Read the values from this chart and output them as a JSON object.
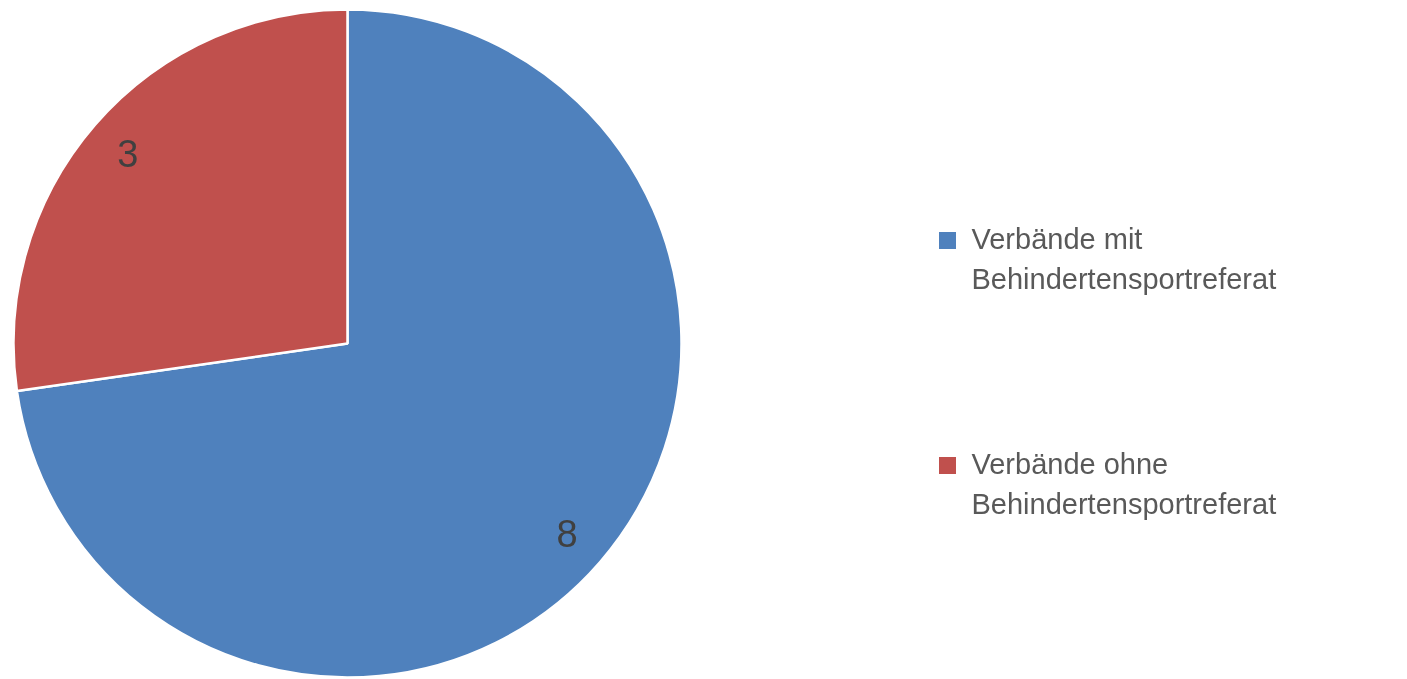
{
  "chart_data": {
    "type": "pie",
    "categories": [
      "Verbände mit Behindertensportreferat",
      "Verbände ohne Behindertensportreferat"
    ],
    "values": [
      8,
      3
    ],
    "colors": [
      "#4f81bd",
      "#c0504d"
    ],
    "data_labels": true,
    "legend": "right"
  }
}
